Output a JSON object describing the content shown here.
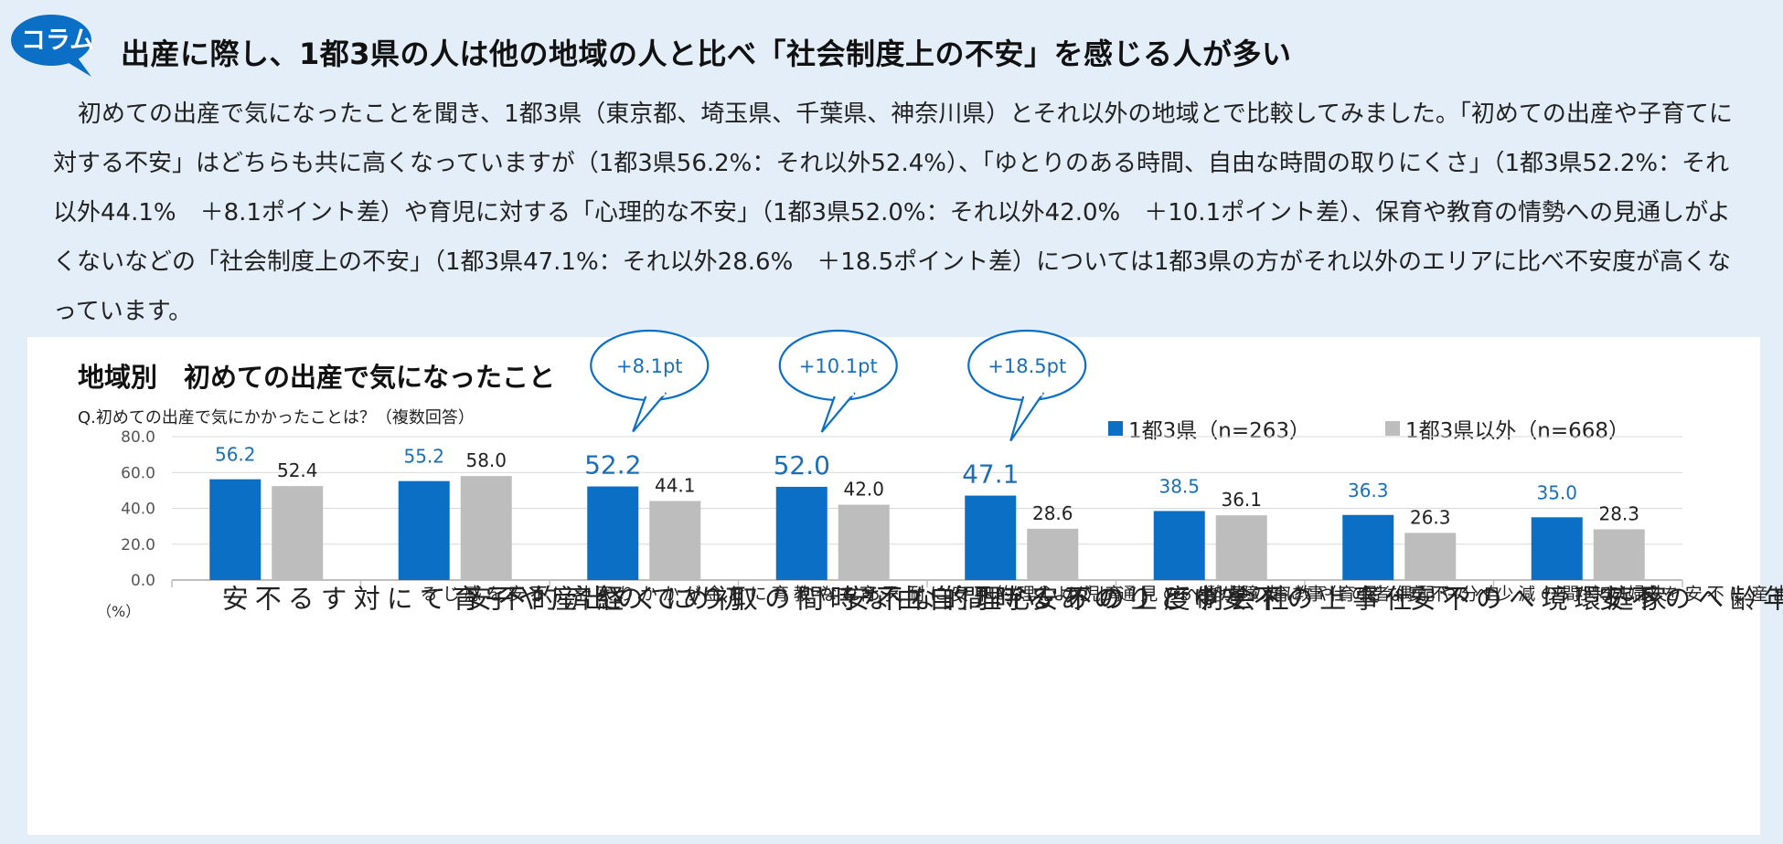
{
  "badge": {
    "label": "コラム"
  },
  "headline": "出産に際し、1都3県の人は他の地域の人と比べ「社会制度上の不安」を感じる人が多い",
  "intro": "初めての出産で気になったことを聞き、1都3県（東京都、埼玉県、千葉県、神奈川県）とそれ以外の地域とで比較してみました。「初めての出産や子育てに対する不安」はどちらも共に高くなっていますが（1都3県56.2%：それ以外52.4%）、「ゆとりのある時間、自由な時間の取りにくさ」（1都3県52.2%：それ以外44.1%　＋8.1ポイント差）や育児に対する「心理的な不安」（1都3県52.0%：それ以外42.0%　＋10.1ポイント差）、保育や教育の情勢への見通しがよくないなどの「社会制度上の不安」（1都3県47.1%：それ以外28.6%　＋18.5ポイント差）については1都3県の方がそれ以外のエリアに比べ不安度が高くなっています。",
  "colors": {
    "primary": "#0b6fc5",
    "secondary": "#bdbdbd",
    "accent_text": "#1b6fb6",
    "panel_bg": "#e3eef8"
  },
  "chart_data": {
    "type": "bar",
    "title": "地域別　初めての出産で気になったこと",
    "subtitle": "Q.初めての出産で気にかかったことは？（複数回答）",
    "unit_label": "（%）",
    "ylim": [
      0,
      80
    ],
    "y_ticks": [
      "0.0",
      "20.0",
      "40.0",
      "60.0",
      "80.0"
    ],
    "legend": {
      "position": "top-right"
    },
    "categories": [
      {
        "main": "初めての出産や\n子育てに対する\n不安",
        "sub": ""
      },
      {
        "main": "経済的不安",
        "sub": "子育てや教育にお金がか\nかり家計に不安を感じる"
      },
      {
        "main": "ゆとりのある時間\n自由な時間の\n取りにくさ",
        "sub": ""
      },
      {
        "main": "心理的な不安",
        "sub": "育児の心理的不安に\n耐えられない"
      },
      {
        "main": "社会制度上の不安",
        "sub": "保育や教育の情勢への\n見通しがよくない"
      },
      {
        "main": "仕事上の不安",
        "sub": "自分や配偶者の仕事に\n支障が出る"
      },
      {
        "main": "家庭環境への不安",
        "sub": "夫婦の時間の減少への\n不安など"
      },
      {
        "main": "年齢への不安",
        "sub": "高年齢での出産に不安\nを感じるから"
      }
    ],
    "series": [
      {
        "name": "1都3県（n=263）",
        "values": [
          56.2,
          55.2,
          52.2,
          52.0,
          47.1,
          38.5,
          36.3,
          35.0
        ],
        "labels": [
          "56.2",
          "55.2",
          "52.2",
          "52.0",
          "47.1",
          "38.5",
          "36.3",
          "35.0"
        ],
        "emphasis": [
          false,
          false,
          true,
          true,
          true,
          false,
          false,
          false
        ]
      },
      {
        "name": "1都3県以外（n=668）",
        "values": [
          52.4,
          58.0,
          44.1,
          42.0,
          28.6,
          36.1,
          26.3,
          28.3
        ],
        "labels": [
          "52.4",
          "58.0",
          "44.1",
          "42.0",
          "28.6",
          "36.1",
          "26.3",
          "28.3"
        ]
      }
    ],
    "callouts": [
      {
        "category": 2,
        "text": "+8.1pt"
      },
      {
        "category": 3,
        "text": "+10.1pt"
      },
      {
        "category": 4,
        "text": "+18.5pt"
      }
    ]
  }
}
